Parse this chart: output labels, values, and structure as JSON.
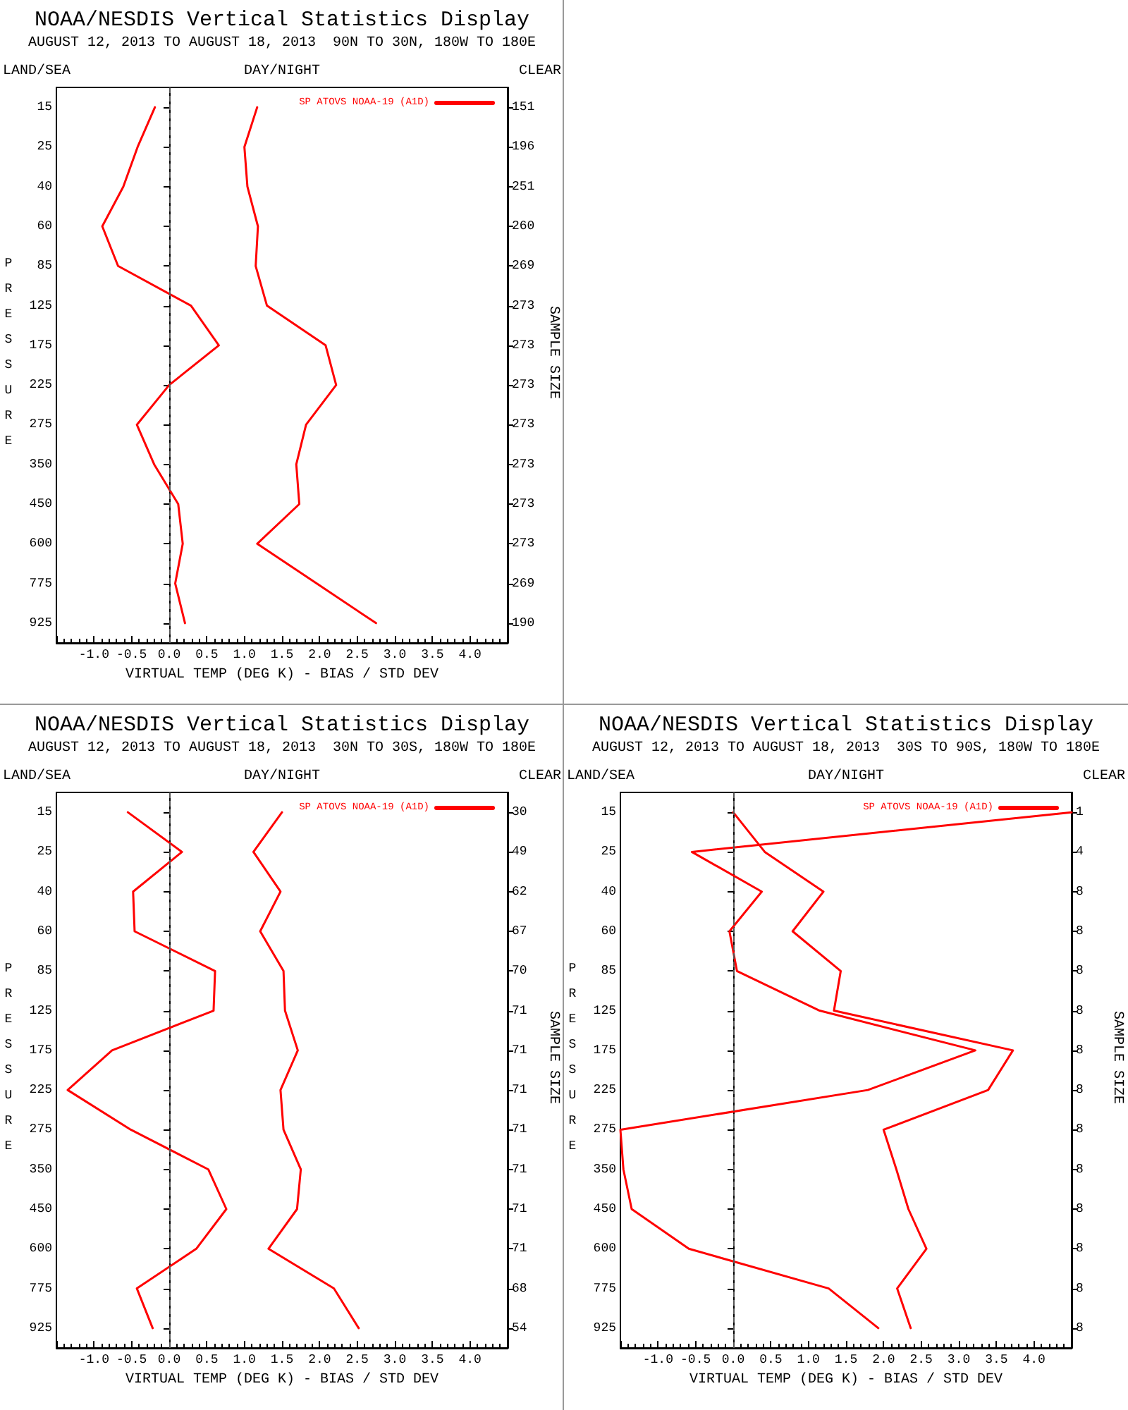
{
  "chart_data": [
    {
      "type": "line",
      "orientation": "horizontal",
      "title": "NOAA/NESDIS Vertical Statistics Display",
      "subtitle": "AUGUST 12, 2013 TO AUGUST 18, 2013  90N TO 30N, 180W TO 180E",
      "annotations": [
        "LAND/SEA",
        "DAY/NIGHT",
        "CLEAR"
      ],
      "xlabel": "VIRTUAL TEMP (DEG K) - BIAS / STD DEV",
      "ylabel": "PRESSURE",
      "y2label": "SAMPLE SIZE",
      "categories": [
        "15",
        "25",
        "40",
        "60",
        "85",
        "125",
        "175",
        "225",
        "275",
        "350",
        "450",
        "600",
        "775",
        "925"
      ],
      "y2_categories": [
        "151",
        "196",
        "251",
        "260",
        "269",
        "273",
        "273",
        "273",
        "273",
        "273",
        "273",
        "273",
        "269",
        "190"
      ],
      "series": [
        {
          "name": "SP ATOVS NOAA-19 (A1D)",
          "color": "#ff0000",
          "values": [
            -0.19,
            -0.42,
            -0.61,
            -0.89,
            -0.68,
            0.29,
            0.66,
            0.0,
            -0.43,
            -0.2,
            0.12,
            0.18,
            0.08,
            0.21
          ]
        },
        {
          "color": "#ff0000",
          "values": [
            1.17,
            1.0,
            1.04,
            1.18,
            1.15,
            1.3,
            2.08,
            2.22,
            1.82,
            1.69,
            1.73,
            1.17,
            1.96,
            2.75
          ]
        }
      ],
      "xlim": [
        -1.5,
        4.5
      ],
      "xticks": [
        {
          "value": -1,
          "label": "-1.0"
        },
        -0.5,
        {
          "value": 0,
          "label": "0.0"
        },
        0.5,
        {
          "value": 1,
          "label": "1.0"
        },
        1.5,
        {
          "value": 2,
          "label": "2.0"
        },
        2.5,
        {
          "value": 3,
          "label": "3.0"
        },
        3.5,
        {
          "value": 4,
          "label": "4.0"
        }
      ],
      "ref_lines": [
        {
          "axis": "x",
          "value": 0,
          "color": "#555555",
          "line_style": "dashed"
        }
      ],
      "legend": "top right",
      "grid": false,
      "marker": "none",
      "line_style": "solid"
    },
    {
      "type": "line",
      "orientation": "horizontal",
      "title": "NOAA/NESDIS Vertical Statistics Display",
      "subtitle": "AUGUST 12, 2013 TO AUGUST 18, 2013  30N TO 30S, 180W TO 180E",
      "annotations": [
        "LAND/SEA",
        "DAY/NIGHT",
        "CLEAR"
      ],
      "xlabel": "VIRTUAL TEMP (DEG K) - BIAS / STD DEV",
      "ylabel": "PRESSURE",
      "y2label": "SAMPLE SIZE",
      "categories": [
        "15",
        "25",
        "40",
        "60",
        "85",
        "125",
        "175",
        "225",
        "275",
        "350",
        "450",
        "600",
        "775",
        "925"
      ],
      "y2_categories": [
        "30",
        "49",
        "62",
        "67",
        "70",
        "71",
        "71",
        "71",
        "71",
        "71",
        "71",
        "71",
        "68",
        "54"
      ],
      "series": [
        {
          "name": "SP ATOVS NOAA-19 (A1D)",
          "color": "#ff0000",
          "values": [
            -0.55,
            0.17,
            -0.48,
            -0.46,
            0.61,
            0.59,
            -0.76,
            -1.35,
            -0.51,
            0.52,
            0.76,
            0.36,
            -0.43,
            -0.22
          ]
        },
        {
          "color": "#ff0000",
          "values": [
            1.5,
            1.12,
            1.48,
            1.21,
            1.52,
            1.54,
            1.71,
            1.48,
            1.52,
            1.75,
            1.7,
            1.32,
            2.19,
            2.52
          ]
        }
      ],
      "xlim": [
        -1.5,
        4.5
      ],
      "xticks": [
        {
          "value": -1,
          "label": "-1.0"
        },
        -0.5,
        {
          "value": 0,
          "label": "0.0"
        },
        0.5,
        {
          "value": 1,
          "label": "1.0"
        },
        1.5,
        {
          "value": 2,
          "label": "2.0"
        },
        2.5,
        {
          "value": 3,
          "label": "3.0"
        },
        3.5,
        {
          "value": 4,
          "label": "4.0"
        }
      ],
      "ref_lines": [
        {
          "axis": "x",
          "value": 0,
          "color": "#555555",
          "line_style": "dashed"
        }
      ],
      "legend": "top right",
      "grid": false,
      "marker": "none",
      "line_style": "solid"
    },
    {
      "type": "line",
      "orientation": "horizontal",
      "title": "NOAA/NESDIS Vertical Statistics Display",
      "subtitle": "AUGUST 12, 2013 TO AUGUST 18, 2013  30S TO 90S, 180W TO 180E",
      "annotations": [
        "LAND/SEA",
        "DAY/NIGHT",
        "CLEAR"
      ],
      "xlabel": "VIRTUAL TEMP (DEG K) - BIAS / STD DEV",
      "ylabel": "PRESSURE",
      "y2label": "SAMPLE SIZE",
      "categories": [
        "15",
        "25",
        "40",
        "60",
        "85",
        "125",
        "175",
        "225",
        "275",
        "350",
        "450",
        "600",
        "775",
        "925"
      ],
      "y2_categories": [
        "1",
        "4",
        "8",
        "8",
        "8",
        "8",
        "8",
        "8",
        "8",
        "8",
        "8",
        "8",
        "8",
        "8"
      ],
      "series": [
        {
          "name": "SP ATOVS NOAA-19 (A1D)",
          "color": "#ff0000",
          "values": [
            4.5,
            -0.55,
            0.38,
            -0.05,
            0.05,
            1.15,
            3.22,
            1.79,
            -1.5,
            -1.46,
            -1.35,
            -0.59,
            1.27,
            1.93
          ]
        },
        {
          "color": "#ff0000",
          "values": [
            0.0,
            0.42,
            1.2,
            0.79,
            1.43,
            1.34,
            3.72,
            3.39,
            2.0,
            2.17,
            2.33,
            2.57,
            2.18,
            2.36
          ]
        }
      ],
      "xlim": [
        -1.5,
        4.5
      ],
      "xticks": [
        {
          "value": -1,
          "label": "-1.0"
        },
        -0.5,
        {
          "value": 0,
          "label": "0.0"
        },
        0.5,
        {
          "value": 1,
          "label": "1.0"
        },
        1.5,
        {
          "value": 2,
          "label": "2.0"
        },
        2.5,
        {
          "value": 3,
          "label": "3.0"
        },
        3.5,
        {
          "value": 4,
          "label": "4.0"
        }
      ],
      "ref_lines": [
        {
          "axis": "x",
          "value": 0,
          "color": "#555555",
          "line_style": "dashed"
        }
      ],
      "legend": "top right",
      "grid": false,
      "marker": "none",
      "line_style": "solid"
    }
  ]
}
